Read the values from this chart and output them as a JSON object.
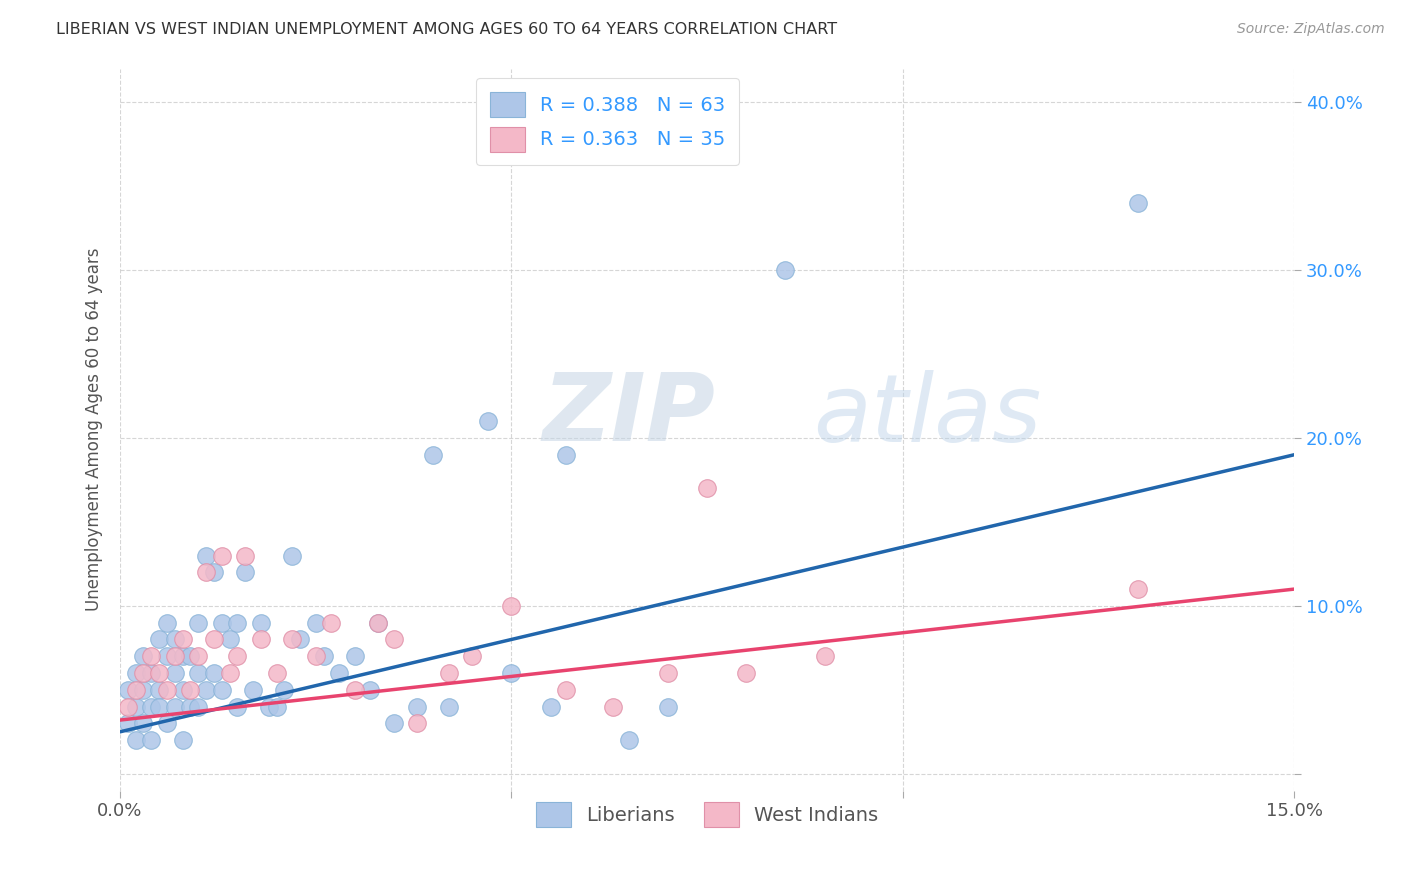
{
  "title": "LIBERIAN VS WEST INDIAN UNEMPLOYMENT AMONG AGES 60 TO 64 YEARS CORRELATION CHART",
  "source": "Source: ZipAtlas.com",
  "ylabel": "Unemployment Among Ages 60 to 64 years",
  "xlim": [
    0.0,
    0.15
  ],
  "ylim": [
    -0.01,
    0.42
  ],
  "xticks": [
    0.0,
    0.05,
    0.1,
    0.15
  ],
  "xticklabels": [
    "0.0%",
    "",
    "",
    "15.0%"
  ],
  "yticks": [
    0.0,
    0.1,
    0.2,
    0.3,
    0.4
  ],
  "yticklabels": [
    "",
    "10.0%",
    "20.0%",
    "30.0%",
    "40.0%"
  ],
  "blue_scatter_color": "#aec6e8",
  "pink_scatter_color": "#f4b8c8",
  "blue_line_color": "#2166ac",
  "pink_line_color": "#e8436e",
  "legend_text_color": "#3399ff",
  "watermark_zip_color": "#c8d8e8",
  "watermark_atlas_color": "#b8cce0",
  "background_color": "#ffffff",
  "grid_color": "#cccccc",
  "liberian_x": [
    0.001,
    0.001,
    0.002,
    0.002,
    0.002,
    0.003,
    0.003,
    0.003,
    0.004,
    0.004,
    0.004,
    0.005,
    0.005,
    0.005,
    0.006,
    0.006,
    0.006,
    0.007,
    0.007,
    0.007,
    0.008,
    0.008,
    0.008,
    0.009,
    0.009,
    0.01,
    0.01,
    0.01,
    0.011,
    0.011,
    0.012,
    0.012,
    0.013,
    0.013,
    0.014,
    0.015,
    0.015,
    0.016,
    0.017,
    0.018,
    0.019,
    0.02,
    0.021,
    0.022,
    0.023,
    0.025,
    0.026,
    0.028,
    0.03,
    0.032,
    0.033,
    0.035,
    0.038,
    0.04,
    0.042,
    0.047,
    0.05,
    0.055,
    0.057,
    0.065,
    0.07,
    0.085,
    0.13
  ],
  "liberian_y": [
    0.03,
    0.05,
    0.04,
    0.06,
    0.02,
    0.07,
    0.05,
    0.03,
    0.06,
    0.04,
    0.02,
    0.05,
    0.08,
    0.04,
    0.07,
    0.09,
    0.03,
    0.06,
    0.08,
    0.04,
    0.05,
    0.07,
    0.02,
    0.07,
    0.04,
    0.06,
    0.09,
    0.04,
    0.13,
    0.05,
    0.12,
    0.06,
    0.09,
    0.05,
    0.08,
    0.09,
    0.04,
    0.12,
    0.05,
    0.09,
    0.04,
    0.04,
    0.05,
    0.13,
    0.08,
    0.09,
    0.07,
    0.06,
    0.07,
    0.05,
    0.09,
    0.03,
    0.04,
    0.19,
    0.04,
    0.21,
    0.06,
    0.04,
    0.19,
    0.02,
    0.04,
    0.3,
    0.34
  ],
  "westindian_x": [
    0.001,
    0.002,
    0.003,
    0.004,
    0.005,
    0.006,
    0.007,
    0.008,
    0.009,
    0.01,
    0.011,
    0.012,
    0.013,
    0.014,
    0.015,
    0.016,
    0.018,
    0.02,
    0.022,
    0.025,
    0.027,
    0.03,
    0.033,
    0.035,
    0.038,
    0.042,
    0.045,
    0.05,
    0.057,
    0.063,
    0.07,
    0.075,
    0.08,
    0.09,
    0.13
  ],
  "westindian_y": [
    0.04,
    0.05,
    0.06,
    0.07,
    0.06,
    0.05,
    0.07,
    0.08,
    0.05,
    0.07,
    0.12,
    0.08,
    0.13,
    0.06,
    0.07,
    0.13,
    0.08,
    0.06,
    0.08,
    0.07,
    0.09,
    0.05,
    0.09,
    0.08,
    0.03,
    0.06,
    0.07,
    0.1,
    0.05,
    0.04,
    0.06,
    0.17,
    0.06,
    0.07,
    0.11
  ],
  "blue_line_x0": 0.0,
  "blue_line_y0": 0.025,
  "blue_line_x1": 0.15,
  "blue_line_y1": 0.19,
  "pink_line_x0": 0.0,
  "pink_line_y0": 0.032,
  "pink_line_x1": 0.15,
  "pink_line_y1": 0.11
}
